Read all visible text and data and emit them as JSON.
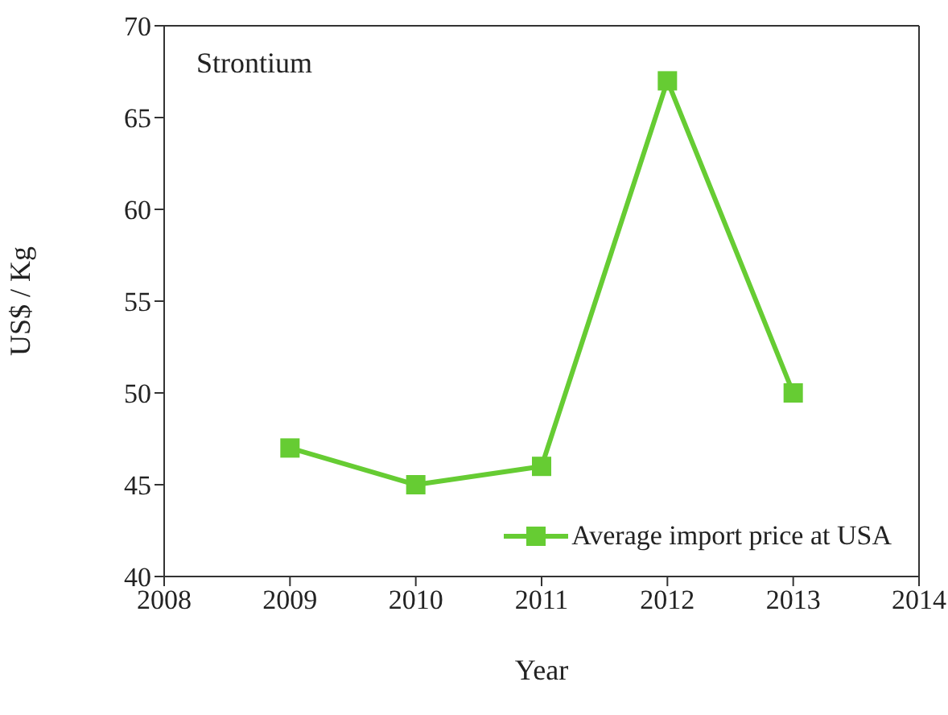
{
  "chart_data": {
    "type": "line",
    "title": "Strontium",
    "xlabel": "Year",
    "ylabel": "US$ / Kg",
    "x": [
      2009,
      2010,
      2011,
      2012,
      2013
    ],
    "series": [
      {
        "name": "Average import price at USA",
        "color": "#66cc33",
        "values": [
          47,
          45,
          46,
          67,
          50
        ]
      }
    ],
    "xlim": [
      2008,
      2014
    ],
    "xticks": [
      2008,
      2009,
      2010,
      2011,
      2012,
      2013,
      2014
    ],
    "ylim": [
      40,
      70
    ],
    "yticks": [
      40,
      45,
      50,
      55,
      60,
      65,
      70
    ],
    "grid": false,
    "legend": "bottom right",
    "marker": "square",
    "line_style": "solid"
  }
}
